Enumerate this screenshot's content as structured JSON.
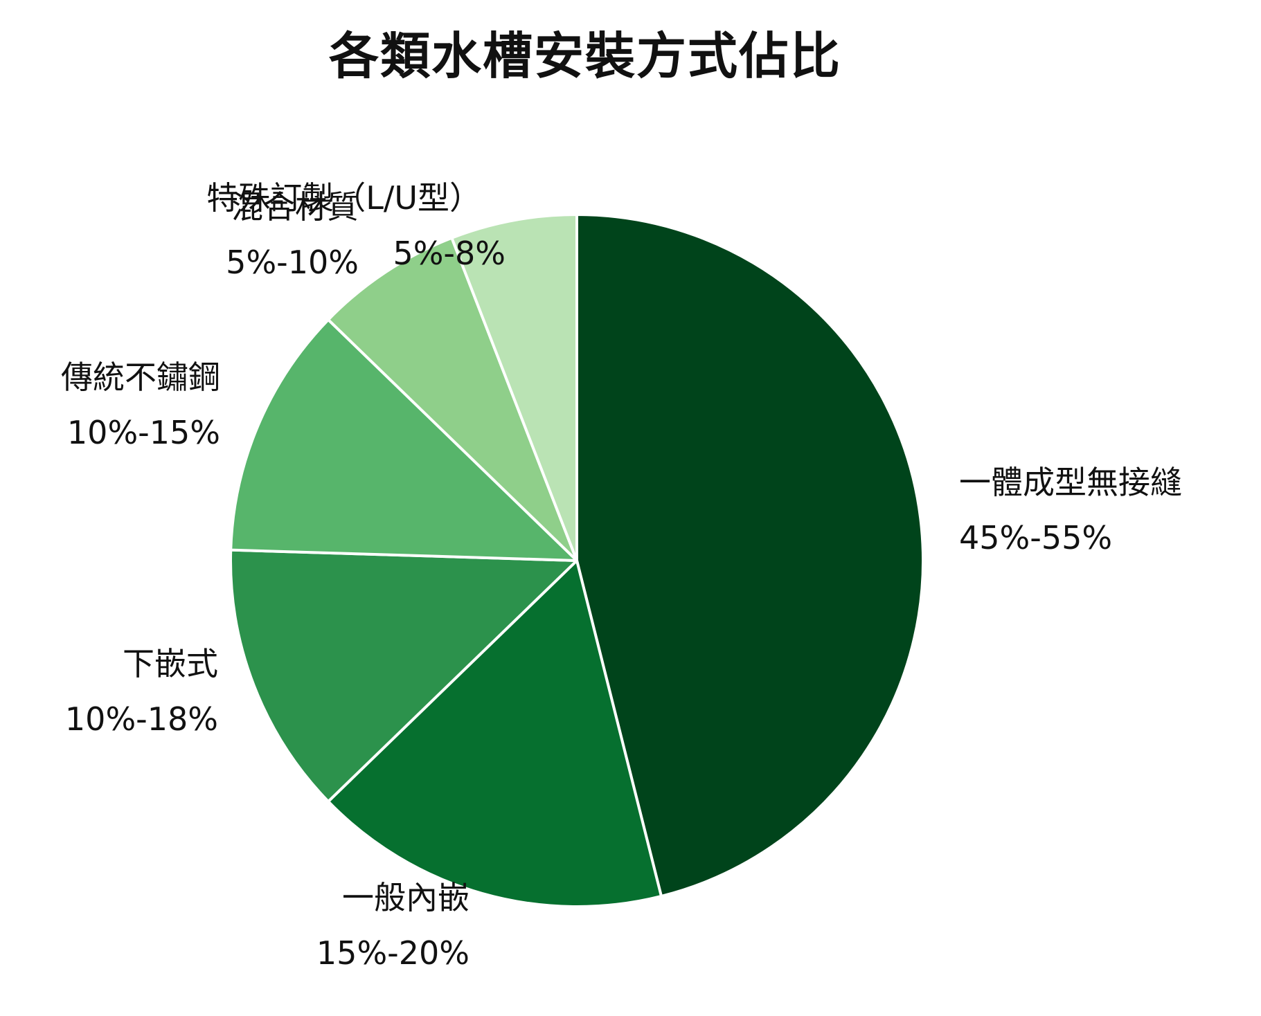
{
  "chart_data": {
    "type": "pie",
    "title": "各類水槽安裝方式佔比",
    "slices": [
      {
        "name": "一體成型無接縫",
        "range": "45%-55%",
        "value": 47,
        "color": "#00441b"
      },
      {
        "name": "一般內嵌",
        "range": "15%-20%",
        "value": 17,
        "color": "#06702f"
      },
      {
        "name": "下嵌式",
        "range": "10%-18%",
        "value": 13,
        "color": "#2c924c"
      },
      {
        "name": "傳統不鏽鋼",
        "range": "10%-15%",
        "value": 12,
        "color": "#57b56b"
      },
      {
        "name": "混合材質",
        "range": "5%-10%",
        "value": 7,
        "color": "#8fcf8a"
      },
      {
        "name": "特殊訂製（L/U型）",
        "range": "5%-8%",
        "value": 6,
        "color": "#bae3b4"
      }
    ]
  }
}
